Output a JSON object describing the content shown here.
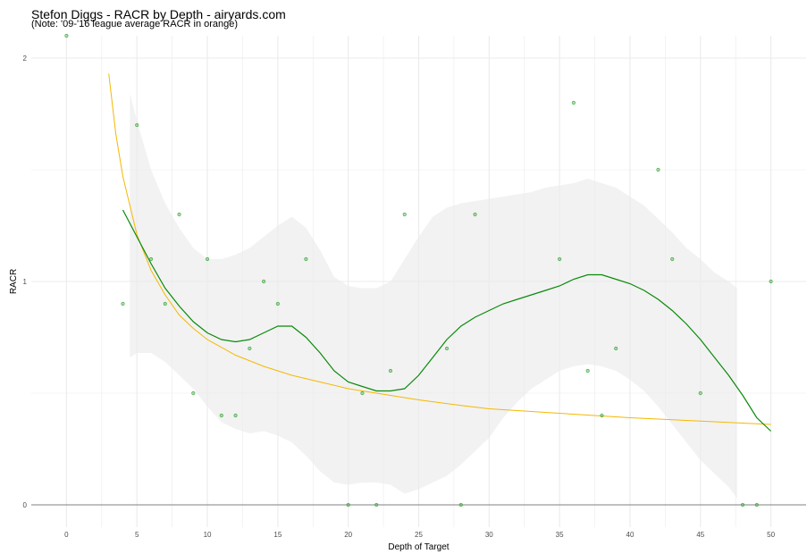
{
  "chart_data": {
    "type": "scatter",
    "title": "Stefon Diggs - RACR by Depth - airyards.com",
    "subtitle": "(Note: '09-'16 league average RACR in orange)",
    "xlabel": "Depth of Target",
    "ylabel": "RACR",
    "xlim": [
      -2.5,
      52.5
    ],
    "ylim": [
      -0.1,
      2.1
    ],
    "xticks": [
      0,
      5,
      10,
      15,
      20,
      25,
      30,
      35,
      40,
      45,
      50
    ],
    "yticks": [
      0,
      1,
      2
    ],
    "grid": true,
    "colors": {
      "points": "#2ca02c",
      "smooth": "#0a8a0a",
      "league": "#f5b800",
      "ribbon": "#ebebeb",
      "grid": "#ebebeb",
      "zero_line": "#808080"
    },
    "points": [
      {
        "x": 0,
        "y": 2.1
      },
      {
        "x": 4,
        "y": 0.9
      },
      {
        "x": 5,
        "y": 1.7
      },
      {
        "x": 6,
        "y": 1.1
      },
      {
        "x": 7,
        "y": 0.9
      },
      {
        "x": 8,
        "y": 1.3
      },
      {
        "x": 9,
        "y": 0.5
      },
      {
        "x": 10,
        "y": 1.1
      },
      {
        "x": 11,
        "y": 0.4
      },
      {
        "x": 12,
        "y": 0.4
      },
      {
        "x": 13,
        "y": 0.7
      },
      {
        "x": 14,
        "y": 1.0
      },
      {
        "x": 15,
        "y": 0.9
      },
      {
        "x": 17,
        "y": 1.1
      },
      {
        "x": 20,
        "y": 0.0
      },
      {
        "x": 21,
        "y": 0.5
      },
      {
        "x": 22,
        "y": 0.0
      },
      {
        "x": 23,
        "y": 0.6
      },
      {
        "x": 24,
        "y": 1.3
      },
      {
        "x": 27,
        "y": 0.7
      },
      {
        "x": 28,
        "y": 0.0
      },
      {
        "x": 29,
        "y": 1.3
      },
      {
        "x": 35,
        "y": 1.1
      },
      {
        "x": 36,
        "y": 1.8
      },
      {
        "x": 37,
        "y": 0.6
      },
      {
        "x": 38,
        "y": 0.4
      },
      {
        "x": 39,
        "y": 0.7
      },
      {
        "x": 42,
        "y": 1.5
      },
      {
        "x": 43,
        "y": 1.1
      },
      {
        "x": 45,
        "y": 0.5
      },
      {
        "x": 48,
        "y": 0.0
      },
      {
        "x": 49,
        "y": 0.0
      },
      {
        "x": 50,
        "y": 1.0
      }
    ],
    "smooth_series": {
      "x": [
        4,
        5,
        6,
        7,
        8,
        9,
        10,
        11,
        12,
        13,
        14,
        15,
        16,
        17,
        18,
        19,
        20,
        21,
        22,
        23,
        24,
        25,
        26,
        27,
        28,
        29,
        30,
        31,
        32,
        33,
        34,
        35,
        36,
        37,
        38,
        39,
        40,
        41,
        42,
        43,
        44,
        45,
        46,
        47,
        48,
        49,
        50
      ],
      "y": [
        1.32,
        1.2,
        1.08,
        0.97,
        0.89,
        0.82,
        0.77,
        0.74,
        0.73,
        0.74,
        0.77,
        0.8,
        0.8,
        0.75,
        0.68,
        0.6,
        0.55,
        0.53,
        0.51,
        0.51,
        0.52,
        0.58,
        0.66,
        0.74,
        0.8,
        0.84,
        0.87,
        0.9,
        0.92,
        0.94,
        0.96,
        0.98,
        1.01,
        1.03,
        1.03,
        1.01,
        0.99,
        0.96,
        0.92,
        0.87,
        0.81,
        0.74,
        0.66,
        0.58,
        0.49,
        0.39,
        0.33
      ]
    },
    "ribbon": {
      "x": [
        4.5,
        5,
        6,
        7,
        8,
        9,
        10,
        11,
        12,
        13,
        14,
        15,
        16,
        17,
        18,
        19,
        20,
        21,
        22,
        23,
        24,
        25,
        26,
        27,
        28,
        29,
        30,
        31,
        32,
        33,
        34,
        35,
        36,
        37,
        38,
        39,
        40,
        41,
        42,
        43,
        44,
        45,
        46,
        47,
        47.6
      ],
      "lower": [
        0.66,
        0.68,
        0.68,
        0.64,
        0.58,
        0.52,
        0.44,
        0.37,
        0.34,
        0.32,
        0.33,
        0.31,
        0.28,
        0.22,
        0.15,
        0.1,
        0.09,
        0.1,
        0.1,
        0.09,
        0.05,
        0.07,
        0.1,
        0.13,
        0.18,
        0.24,
        0.3,
        0.39,
        0.46,
        0.52,
        0.56,
        0.6,
        0.62,
        0.63,
        0.62,
        0.6,
        0.56,
        0.51,
        0.44,
        0.36,
        0.28,
        0.2,
        0.14,
        0.08,
        0.03
      ],
      "upper": [
        1.84,
        1.72,
        1.5,
        1.35,
        1.24,
        1.15,
        1.1,
        1.1,
        1.12,
        1.15,
        1.2,
        1.25,
        1.29,
        1.24,
        1.14,
        1.02,
        0.98,
        0.97,
        0.97,
        1.0,
        1.1,
        1.2,
        1.29,
        1.33,
        1.35,
        1.36,
        1.37,
        1.38,
        1.39,
        1.4,
        1.42,
        1.43,
        1.44,
        1.46,
        1.44,
        1.42,
        1.38,
        1.34,
        1.28,
        1.22,
        1.15,
        1.1,
        1.04,
        1.0,
        0.97
      ]
    },
    "league_series": {
      "x": [
        3,
        3.5,
        4,
        5,
        6,
        7,
        8,
        9,
        10,
        12,
        14,
        16,
        18,
        20,
        22,
        25,
        28,
        30,
        35,
        40,
        45,
        50
      ],
      "y": [
        1.93,
        1.66,
        1.47,
        1.21,
        1.05,
        0.94,
        0.85,
        0.79,
        0.74,
        0.67,
        0.62,
        0.58,
        0.55,
        0.52,
        0.5,
        0.47,
        0.445,
        0.43,
        0.41,
        0.39,
        0.375,
        0.36
      ]
    }
  }
}
